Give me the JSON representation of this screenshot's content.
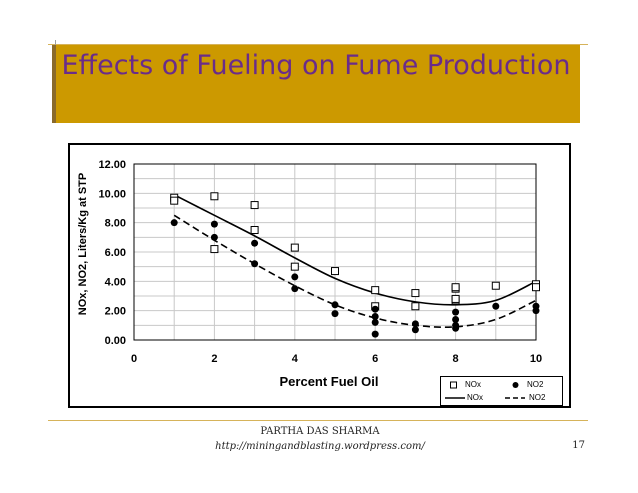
{
  "slide": {
    "title": "Effects of Fueling on Fume Production",
    "band_color": "#cc9900",
    "title_color": "#6a2c8a",
    "author": "PARTHA DAS SHARMA",
    "url": "http://miningandblasting.wordpress.com/",
    "page_number": "17"
  },
  "chart_data": {
    "type": "scatter",
    "title": "",
    "xlabel": "Percent Fuel Oil",
    "ylabel": "NOx, NO2, Liters/Kg at STP",
    "xlim": [
      0,
      10
    ],
    "ylim": [
      0,
      12
    ],
    "xticks": [
      "0",
      "2",
      "4",
      "6",
      "8",
      "10"
    ],
    "yticks": [
      "0.00",
      "2.00",
      "4.00",
      "6.00",
      "8.00",
      "10.00",
      "12.00"
    ],
    "grid": true,
    "legend_position": "bottom-right",
    "legend": {
      "nox_points": "NOx",
      "no2_points": "NO2",
      "nox_curve": "NOx",
      "no2_curve": "NO2"
    },
    "series": [
      {
        "name": "NOx",
        "marker": "open-square",
        "points": [
          [
            1,
            9.7
          ],
          [
            1,
            9.5
          ],
          [
            2,
            9.8
          ],
          [
            2,
            6.2
          ],
          [
            3,
            9.2
          ],
          [
            3,
            7.5
          ],
          [
            4,
            6.3
          ],
          [
            4,
            5.0
          ],
          [
            5,
            4.7
          ],
          [
            6,
            3.4
          ],
          [
            6,
            2.3
          ],
          [
            7,
            3.2
          ],
          [
            7,
            2.3
          ],
          [
            8,
            3.5
          ],
          [
            8,
            3.6
          ],
          [
            8,
            2.7
          ],
          [
            8,
            2.8
          ],
          [
            9,
            3.7
          ],
          [
            10,
            3.8
          ],
          [
            10,
            3.6
          ]
        ]
      },
      {
        "name": "NO2",
        "marker": "filled-circle",
        "points": [
          [
            1,
            8.0
          ],
          [
            2,
            7.9
          ],
          [
            2,
            7.0
          ],
          [
            3,
            6.6
          ],
          [
            3,
            5.2
          ],
          [
            4,
            4.3
          ],
          [
            4,
            3.5
          ],
          [
            5,
            2.4
          ],
          [
            5,
            1.8
          ],
          [
            6,
            2.1
          ],
          [
            6,
            1.6
          ],
          [
            6,
            1.2
          ],
          [
            6,
            0.4
          ],
          [
            7,
            1.1
          ],
          [
            7,
            0.7
          ],
          [
            8,
            1.9
          ],
          [
            8,
            1.4
          ],
          [
            8,
            1.0
          ],
          [
            8,
            0.8
          ],
          [
            9,
            2.3
          ],
          [
            10,
            2.3
          ],
          [
            10,
            2.0
          ]
        ]
      },
      {
        "name": "NOx",
        "style": "solid-line",
        "points": [
          [
            1,
            9.9
          ],
          [
            2,
            8.5
          ],
          [
            3,
            7.1
          ],
          [
            4,
            5.6
          ],
          [
            5,
            4.2
          ],
          [
            6,
            3.2
          ],
          [
            7,
            2.6
          ],
          [
            8,
            2.4
          ],
          [
            9,
            2.7
          ],
          [
            10,
            4.0
          ]
        ]
      },
      {
        "name": "NO2",
        "style": "dashed-line",
        "points": [
          [
            1,
            8.5
          ],
          [
            2,
            6.8
          ],
          [
            3,
            5.2
          ],
          [
            4,
            3.7
          ],
          [
            5,
            2.4
          ],
          [
            6,
            1.5
          ],
          [
            7,
            1.0
          ],
          [
            8,
            0.9
          ],
          [
            9,
            1.4
          ],
          [
            10,
            2.7
          ]
        ]
      }
    ]
  }
}
